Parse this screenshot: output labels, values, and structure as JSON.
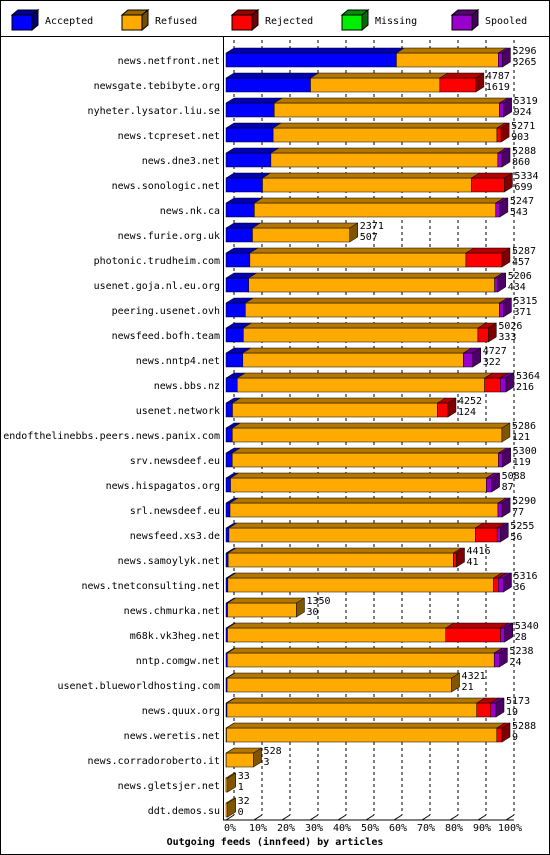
{
  "chart_data": {
    "type": "stacked-bar-3d",
    "x_label": "Outgoing feeds (innfeed) by articles",
    "categories": [
      "news.netfront.net",
      "newsgate.tebibyte.org",
      "nyheter.lysator.liu.se",
      "news.tcpreset.net",
      "news.dne3.net",
      "news.sonologic.net",
      "news.nk.ca",
      "news.furie.org.uk",
      "photonic.trudheim.com",
      "usenet.goja.nl.eu.org",
      "peering.usenet.ovh",
      "newsfeed.bofh.team",
      "news.nntp4.net",
      "news.bbs.nz",
      "usenet.network",
      "endofthelinebbs.peers.news.panix.com",
      "srv.newsdeef.eu",
      "news.hispagatos.org",
      "srl.newsdeef.eu",
      "newsfeed.xs3.de",
      "news.samoylyk.net",
      "news.tnetconsulting.net",
      "news.chmurka.net",
      "m68k.vk3heg.net",
      "nntp.comgw.net",
      "usenet.blueworldhosting.com",
      "news.quux.org",
      "news.weretis.net",
      "news.corradoroberto.it",
      "news.gletsjer.net",
      "ddt.demos.su"
    ],
    "totals": [
      5296,
      4787,
      5319,
      5271,
      5288,
      5334,
      5247,
      2371,
      5287,
      5206,
      5315,
      5026,
      4727,
      5364,
      4252,
      5286,
      5300,
      5088,
      5290,
      5255,
      4416,
      5316,
      1350,
      5340,
      5238,
      4321,
      5173,
      5288,
      528,
      33,
      32
    ],
    "series": [
      {
        "name": "Accepted",
        "color": "#0000ff",
        "values": [
          3265,
          1619,
          924,
          903,
          860,
          699,
          543,
          507,
          457,
          434,
          371,
          333,
          322,
          216,
          124,
          121,
          119,
          87,
          77,
          56,
          41,
          36,
          30,
          28,
          24,
          21,
          19,
          9,
          3,
          1,
          0
        ]
      },
      {
        "name": "Refused",
        "color": "#ffaa00",
        "values": [
          1951,
          2478,
          4315,
          4288,
          4348,
          4005,
          4624,
          1864,
          4140,
          4712,
          4864,
          4493,
          4225,
          4738,
          3928,
          5165,
          5101,
          4901,
          5133,
          4719,
          4315,
          5090,
          1320,
          4182,
          5114,
          4300,
          4784,
          5179,
          525,
          32,
          32
        ]
      },
      {
        "name": "Rejected",
        "color": "#ff0000",
        "values": [
          0,
          690,
          0,
          80,
          0,
          630,
          0,
          0,
          690,
          0,
          0,
          200,
          0,
          300,
          200,
          0,
          0,
          0,
          0,
          420,
          60,
          90,
          0,
          1050,
          0,
          0,
          270,
          100,
          0,
          0,
          0
        ]
      },
      {
        "name": "Missing",
        "color": "#00ee00",
        "values": [
          0,
          0,
          0,
          0,
          0,
          0,
          0,
          0,
          0,
          0,
          0,
          0,
          0,
          0,
          0,
          0,
          0,
          0,
          0,
          0,
          0,
          0,
          0,
          0,
          0,
          0,
          0,
          0,
          0,
          0,
          0
        ]
      },
      {
        "name": "Spooled",
        "color": "#9900cc",
        "values": [
          80,
          0,
          80,
          0,
          80,
          0,
          80,
          0,
          0,
          60,
          80,
          0,
          180,
          110,
          0,
          0,
          80,
          100,
          80,
          60,
          0,
          100,
          0,
          80,
          100,
          0,
          100,
          0,
          0,
          0,
          0
        ]
      }
    ],
    "xlim": [
      0,
      5364
    ],
    "xticks": [
      {
        "value": 0,
        "label": "0%"
      },
      {
        "value": 536.4,
        "label": "10%"
      },
      {
        "value": 1072.8,
        "label": "20%"
      },
      {
        "value": 1609.2,
        "label": "30%"
      },
      {
        "value": 2145.6,
        "label": "40%"
      },
      {
        "value": 2682,
        "label": "50%"
      },
      {
        "value": 3218.4,
        "label": "60%"
      },
      {
        "value": 3754.8,
        "label": "70%"
      },
      {
        "value": 4291.2,
        "label": "80%"
      },
      {
        "value": 4827.6,
        "label": "90%"
      },
      {
        "value": 5364,
        "label": "100%"
      }
    ],
    "grid": true
  }
}
